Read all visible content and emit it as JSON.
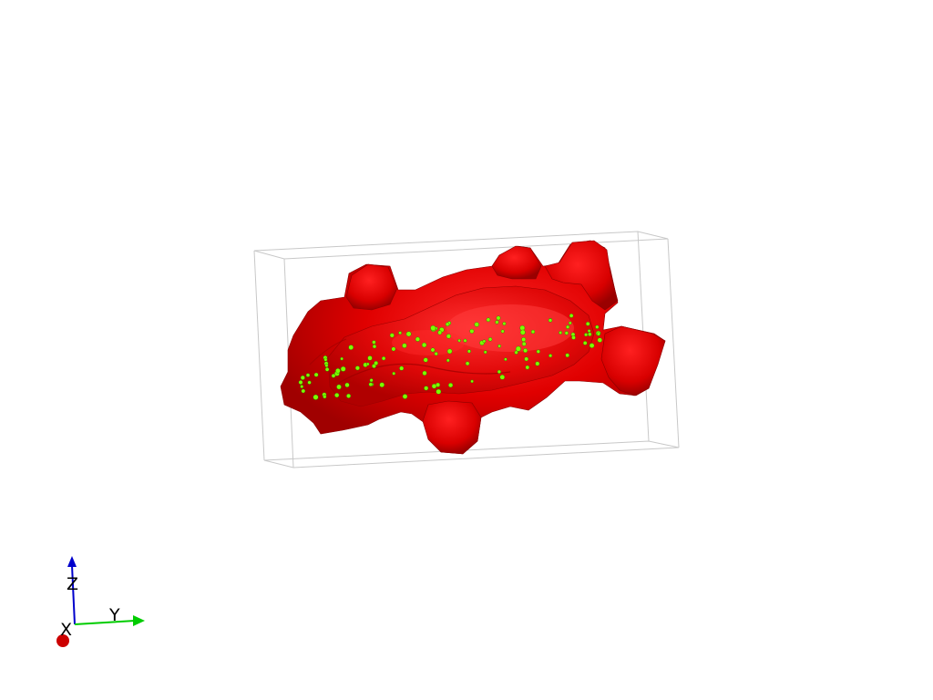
{
  "scene": {
    "background": "#ffffff",
    "surface_color": "#ee0000",
    "surface_dark": "#a00000",
    "surface_highlight": "#ff3a3a",
    "point_color": "#7cff00",
    "bounding_box_color": "#c8c8c8"
  },
  "axes": {
    "x": {
      "label": "X",
      "color": "#cc0000",
      "icon": "x-axis-arrow-icon"
    },
    "y": {
      "label": "Y",
      "color": "#00cc00",
      "icon": "y-axis-arrow-icon"
    },
    "z": {
      "label": "Z",
      "color": "#0000cc",
      "icon": "z-axis-arrow-icon"
    }
  }
}
